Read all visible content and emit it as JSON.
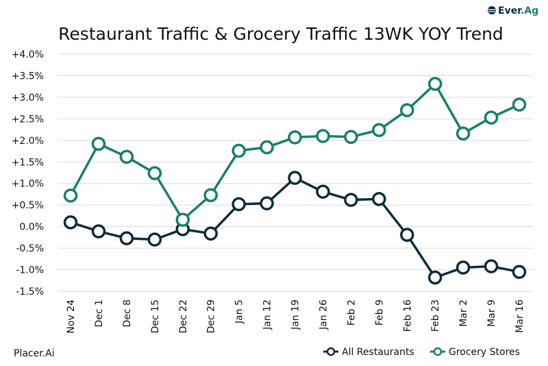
{
  "logo": {
    "text_dark": "Ever",
    "text_green": ".Ag"
  },
  "source": "Placer.Ai",
  "colors": {
    "restaurants": "#0d2b3a",
    "grocery": "#16806a",
    "grid": "#d9d9d9"
  },
  "chart_data": {
    "type": "line",
    "title": "Restaurant Traffic & Grocery Traffic 13WK YOY Trend",
    "xlabel": "",
    "ylabel": "",
    "ylim": [
      -1.5,
      4.0
    ],
    "yticks": [
      4.0,
      3.5,
      3.0,
      2.5,
      2.0,
      1.5,
      1.0,
      0.5,
      0.0,
      -0.5,
      -1.0,
      -1.5
    ],
    "ytick_labels": [
      "+4.0%",
      "+3.5%",
      "+3.0%",
      "+2.5%",
      "+2.0%",
      "+1.5%",
      "+1.0%",
      "+0.5%",
      "0.0%",
      "-0.5%",
      "-1.0%",
      "-1.5%"
    ],
    "grid": "horizontal",
    "legend": "bottom-right",
    "categories": [
      "Nov 24",
      "Dec 1",
      "Dec 8",
      "Dec 15",
      "Dec 22",
      "Dec 29",
      "Jan 5",
      "Jan 12",
      "Jan 19",
      "Jan 26",
      "Feb 2",
      "Feb 9",
      "Feb 16",
      "Feb 23",
      "Mar 2",
      "Mar 9",
      "Mar 16"
    ],
    "series": [
      {
        "name": "All Restaurants",
        "color": "#0d2b3a",
        "values": [
          0.1,
          -0.11,
          -0.27,
          -0.3,
          -0.06,
          -0.16,
          0.52,
          0.54,
          1.13,
          0.81,
          0.62,
          0.64,
          -0.19,
          -1.18,
          -0.95,
          -0.92,
          -1.05
        ]
      },
      {
        "name": "Grocery Stores",
        "color": "#16806a",
        "values": [
          0.72,
          1.92,
          1.62,
          1.24,
          0.16,
          0.73,
          1.76,
          1.84,
          2.07,
          2.1,
          2.08,
          2.24,
          2.7,
          3.31,
          2.16,
          2.53,
          2.83
        ]
      }
    ]
  }
}
